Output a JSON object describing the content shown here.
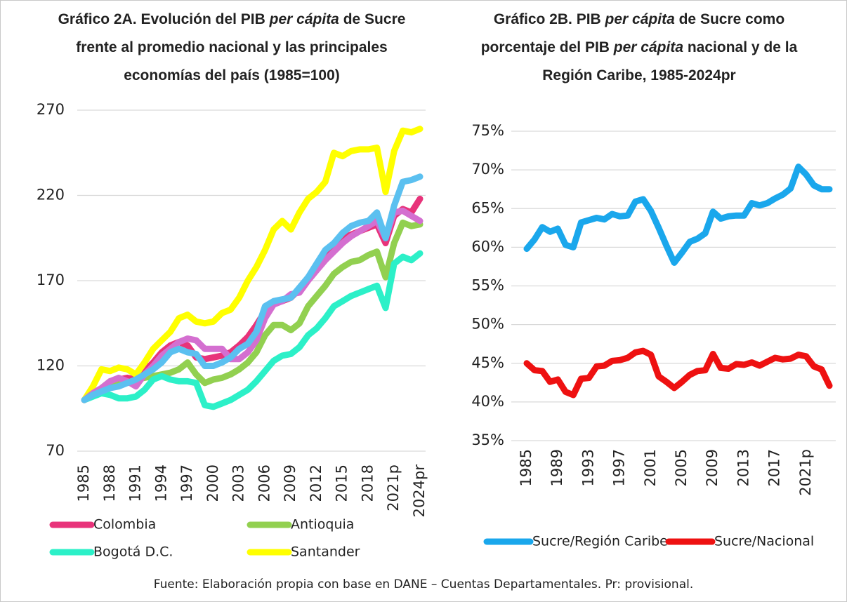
{
  "chart_data": [
    {
      "type": "line",
      "title": [
        [
          {
            "text": "Gráfico 2A. Evolución del PIB "
          },
          {
            "text": "per cápita",
            "italic": true
          },
          {
            "text": " de Sucre"
          }
        ],
        [
          {
            "text": "frente al promedio nacional y las principales"
          }
        ],
        [
          {
            "text": "economías del país (1985=100)"
          }
        ]
      ],
      "categories": [
        "1985",
        null,
        null,
        "1988",
        null,
        null,
        "1991",
        null,
        null,
        "1994",
        null,
        null,
        "1997",
        null,
        null,
        "2000",
        null,
        null,
        "2003",
        null,
        null,
        "2006",
        null,
        null,
        "2009",
        null,
        null,
        "2012",
        null,
        null,
        "2015",
        null,
        null,
        "2018",
        null,
        null,
        "2021p",
        null,
        null,
        "2024pr"
      ],
      "ylim": [
        70,
        270
      ],
      "yticks": [
        70,
        120,
        170,
        220,
        270
      ],
      "grid": true,
      "series": [
        {
          "name": "Colombia",
          "color": "#e8337a",
          "values": [
            100,
            104,
            106,
            110,
            112,
            113,
            112,
            117,
            122,
            128,
            132,
            134,
            132,
            125,
            124,
            125,
            126,
            128,
            132,
            137,
            144,
            152,
            157,
            158,
            160,
            165,
            172,
            178,
            183,
            190,
            195,
            197,
            199,
            201,
            203,
            192,
            208,
            212,
            210,
            218
          ]
        },
        {
          "name": "Antioquia",
          "color": "#92d050",
          "values": [
            100,
            103,
            107,
            111,
            110,
            110,
            112,
            113,
            114,
            115,
            116,
            118,
            122,
            115,
            110,
            112,
            113,
            115,
            118,
            122,
            128,
            138,
            144,
            144,
            141,
            145,
            155,
            161,
            167,
            174,
            178,
            181,
            182,
            185,
            187,
            172,
            192,
            204,
            202,
            203
          ]
        },
        {
          "name": "Bogotá D.C.",
          "color": "#2cf0c8",
          "values": [
            100,
            102,
            104,
            103,
            101,
            101,
            102,
            106,
            112,
            114,
            112,
            111,
            111,
            110,
            97,
            96,
            98,
            100,
            103,
            106,
            111,
            117,
            123,
            126,
            127,
            131,
            138,
            142,
            148,
            155,
            158,
            161,
            163,
            165,
            167,
            154,
            180,
            184,
            182,
            186
          ]
        },
        {
          "name": "Santander",
          "color": "#ffff00",
          "values": [
            100,
            108,
            118,
            117,
            119,
            118,
            115,
            122,
            130,
            135,
            140,
            148,
            150,
            146,
            145,
            146,
            151,
            153,
            160,
            170,
            178,
            188,
            200,
            205,
            200,
            210,
            218,
            222,
            228,
            245,
            243,
            246,
            247,
            247,
            248,
            222,
            246,
            258,
            257,
            259
          ]
        },
        {
          "color": "#d46fd0",
          "values": [
            100,
            104,
            107,
            111,
            113,
            111,
            108,
            115,
            120,
            126,
            130,
            134,
            136,
            135,
            130,
            130,
            130,
            124,
            124,
            128,
            135,
            148,
            156,
            158,
            162,
            163,
            170,
            176,
            182,
            187,
            192,
            196,
            199,
            202,
            205,
            195,
            210,
            211,
            208,
            205
          ]
        },
        {
          "color": "#5bc0f0",
          "values": [
            100,
            103,
            105,
            107,
            108,
            110,
            112,
            115,
            118,
            122,
            128,
            130,
            128,
            127,
            120,
            120,
            122,
            125,
            130,
            133,
            140,
            155,
            158,
            159,
            160,
            166,
            172,
            180,
            188,
            192,
            198,
            202,
            204,
            205,
            210,
            195,
            214,
            228,
            229,
            231
          ]
        }
      ]
    },
    {
      "type": "line",
      "title": [
        [
          {
            "text": "Gráfico 2B. PIB "
          },
          {
            "text": "per cápita",
            "italic": true
          },
          {
            "text": " de Sucre como"
          }
        ],
        [
          {
            "text": "porcentaje del PIB "
          },
          {
            "text": "per cápita",
            "italic": true
          },
          {
            "text": " nacional y de la"
          }
        ],
        [
          {
            "text": "Región Caribe, 1985-2024pr"
          }
        ]
      ],
      "categories": [
        "1985",
        null,
        null,
        null,
        "1989",
        null,
        null,
        null,
        "1993",
        null,
        null,
        null,
        "1997",
        null,
        null,
        null,
        "2001",
        null,
        null,
        null,
        "2005",
        null,
        null,
        null,
        "2009",
        null,
        null,
        null,
        "2013",
        null,
        null,
        null,
        "2017",
        null,
        null,
        null,
        "2021p",
        null,
        null,
        null
      ],
      "ylim": [
        35,
        75
      ],
      "yticks": [
        {
          "value": 35,
          "label": "35%"
        },
        {
          "value": 40,
          "label": "40%"
        },
        {
          "value": 45,
          "label": "45%"
        },
        {
          "value": 50,
          "label": "50%"
        },
        {
          "value": 55,
          "label": "55%"
        },
        {
          "value": 60,
          "label": "60%"
        },
        {
          "value": 65,
          "label": "65%"
        },
        {
          "value": 70,
          "label": "70%"
        },
        {
          "value": 75,
          "label": "75%"
        }
      ],
      "grid": true,
      "series": [
        {
          "name": "Sucre/Región Caribe",
          "color": "#1aa7ec",
          "values": [
            59.8,
            61,
            62.6,
            62,
            62.4,
            60.3,
            60,
            63.2,
            63.5,
            63.8,
            63.6,
            64.3,
            64,
            64.1,
            65.9,
            66.2,
            64.7,
            62.5,
            60.2,
            58,
            59.3,
            60.7,
            61.1,
            61.8,
            64.6,
            63.7,
            64,
            64.1,
            64.1,
            65.7,
            65.4,
            65.7,
            66.3,
            66.8,
            67.6,
            70.4,
            69.4,
            68,
            67.5,
            67.5
          ]
        },
        {
          "name": "Sucre/Nacional",
          "color": "#ee1111",
          "values": [
            45,
            44.1,
            44,
            42.6,
            42.9,
            41.3,
            40.9,
            43,
            43.1,
            44.6,
            44.7,
            45.3,
            45.4,
            45.7,
            46.4,
            46.6,
            46.1,
            43.3,
            42.6,
            41.8,
            42.6,
            43.5,
            44,
            44.1,
            46.2,
            44.4,
            44.3,
            44.9,
            44.8,
            45.1,
            44.7,
            45.2,
            45.7,
            45.5,
            45.6,
            46.1,
            45.9,
            44.6,
            44.2,
            42.1
          ]
        }
      ]
    }
  ],
  "source": "Fuente: Elaboración propia con base en DANE – Cuentas Departamentales. Pr: provisional."
}
